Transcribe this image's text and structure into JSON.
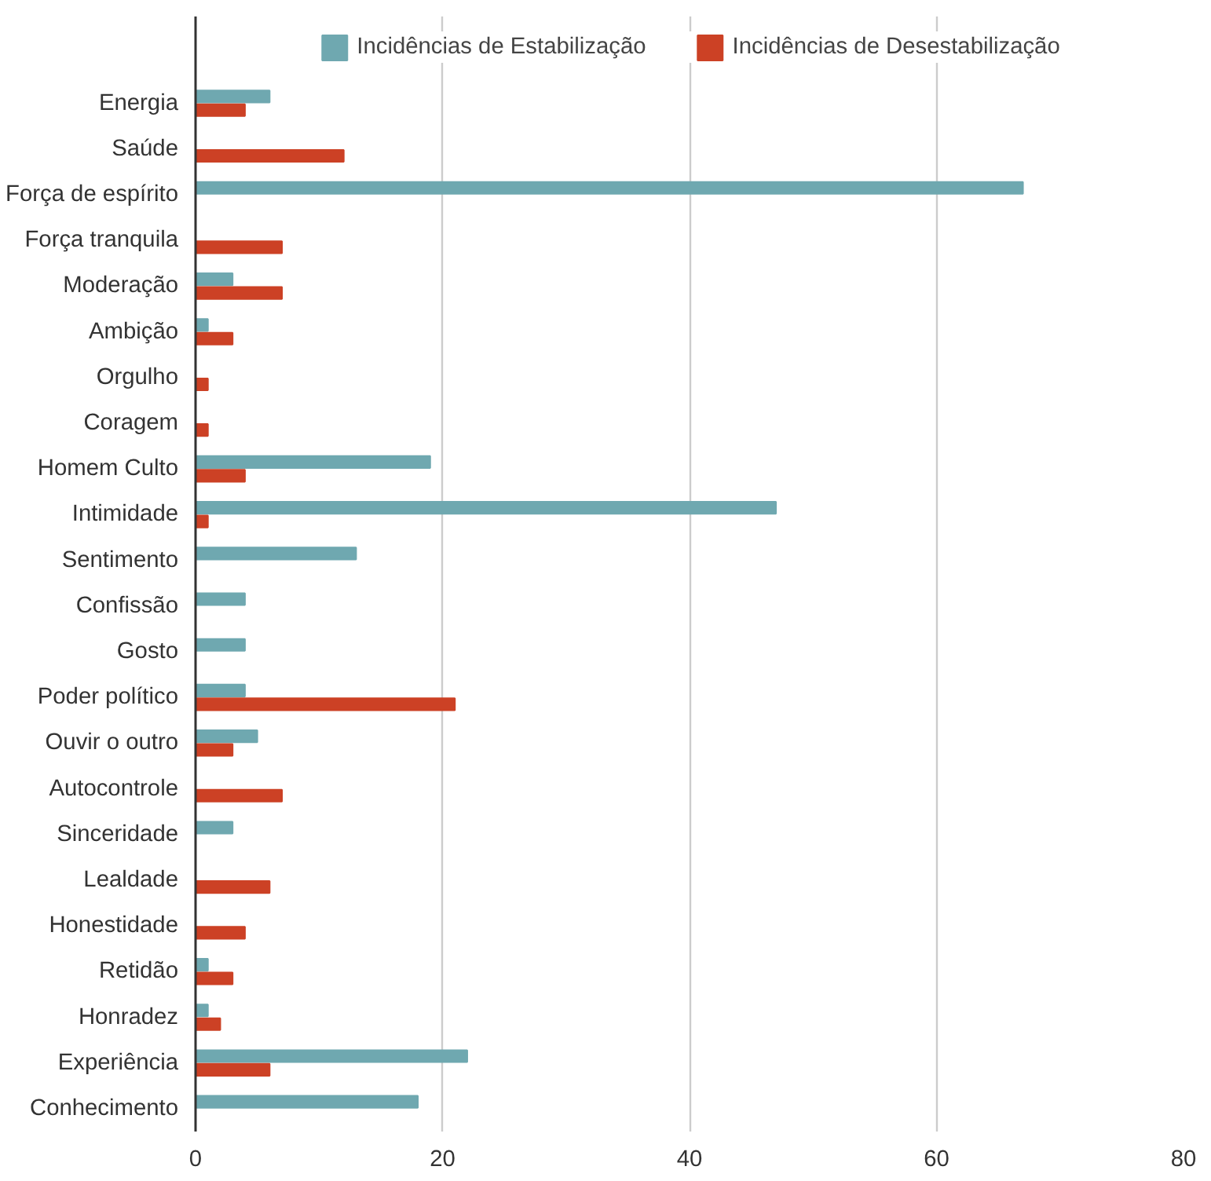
{
  "chart_data": {
    "type": "bar",
    "orientation": "horizontal",
    "categories": [
      "Energia",
      "Saúde",
      "Força de espírito",
      "Força tranquila",
      "Moderação",
      "Ambição",
      "Orgulho",
      "Coragem",
      "Homem Culto",
      "Intimidade",
      "Sentimento",
      "Confissão",
      "Gosto",
      "Poder político",
      "Ouvir o outro",
      "Autocontrole",
      "Sinceridade",
      "Lealdade",
      "Honestidade",
      "Retidão",
      "Honradez",
      "Experiência",
      "Conhecimento"
    ],
    "series": [
      {
        "name": "Incidências de Estabilização",
        "color": "#6fa8b0",
        "values": [
          6,
          null,
          67,
          null,
          3,
          1,
          null,
          null,
          19,
          47,
          13,
          4,
          4,
          4,
          5,
          null,
          3,
          null,
          null,
          1,
          1,
          22,
          18
        ]
      },
      {
        "name": "Incidências de Desestabilização",
        "color": "#cc4125",
        "values": [
          4,
          12,
          null,
          7,
          7,
          3,
          1,
          1,
          4,
          1,
          null,
          null,
          null,
          21,
          3,
          7,
          null,
          6,
          4,
          3,
          2,
          6,
          null
        ]
      }
    ],
    "xlim": [
      0,
      80
    ],
    "xticks": [
      0,
      20,
      40,
      60,
      80
    ],
    "grid": "x",
    "legend": "top"
  }
}
